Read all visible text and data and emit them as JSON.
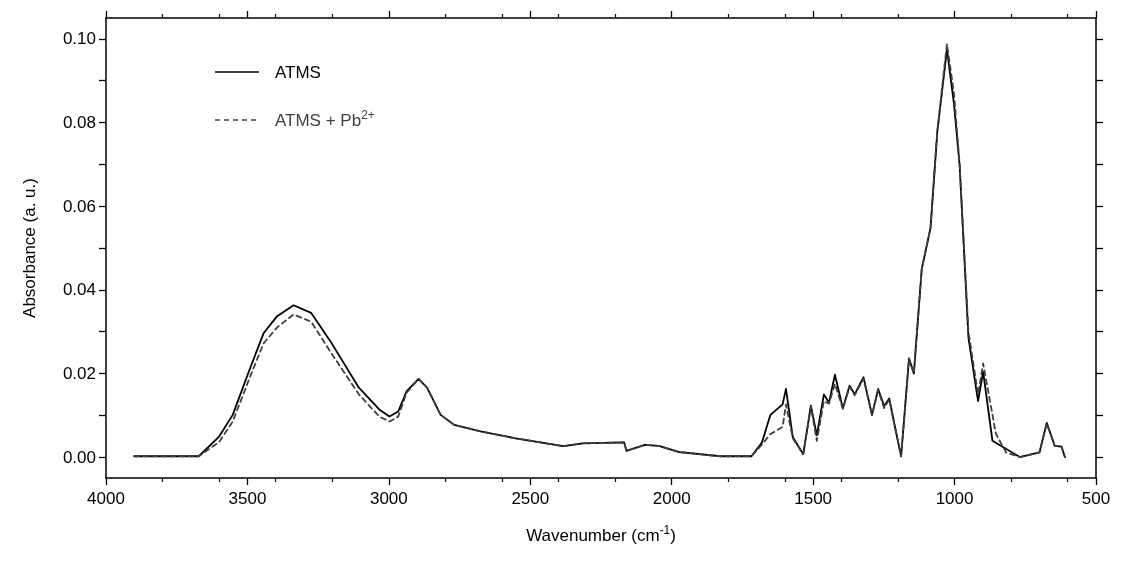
{
  "chart_data": {
    "type": "line",
    "xlabel": "Wavenumber (cm$^{-1}$)",
    "ylabel": "Absorbance (a. u.)",
    "xlim": [
      4000,
      500
    ],
    "xticks": [
      4000,
      3500,
      3000,
      2500,
      2000,
      1500,
      1000,
      500
    ],
    "ylim": [
      -0.005,
      0.105
    ],
    "yticks": [
      {
        "value": 0,
        "label": "0.00"
      },
      {
        "value": 0.01,
        "label": null
      },
      0.02,
      {
        "value": 0.03,
        "label": null
      },
      0.04,
      {
        "value": 0.05,
        "label": null
      },
      0.06,
      {
        "value": 0.07,
        "label": null
      },
      0.08,
      {
        "value": 0.09,
        "label": null
      },
      {
        "value": 0.1,
        "label": "0.10"
      }
    ],
    "grid": false,
    "legend": "top left",
    "marker": "none",
    "series": [
      {
        "name": "ATMS",
        "color": "#000000",
        "line_style": "solid",
        "x": [
          3900,
          3672,
          3600,
          3552,
          3492,
          3443,
          3395,
          3337,
          3275,
          3202,
          3106,
          3034,
          2998,
          2967,
          2937,
          2895,
          2865,
          2817,
          2769,
          2672,
          2552,
          2383,
          2314,
          2168,
          2160,
          2095,
          2046,
          1973,
          1827,
          1718,
          1681,
          1651,
          1608,
          1596,
          1572,
          1535,
          1508,
          1487,
          1462,
          1444,
          1423,
          1395,
          1371,
          1353,
          1322,
          1292,
          1270,
          1249,
          1231,
          1207,
          1189,
          1161,
          1144,
          1116,
          1085,
          1061,
          1027,
          1002,
          982,
          951,
          917,
          899,
          866,
          769,
          700,
          674,
          646,
          622,
          610
        ],
        "values": [
          0.0002,
          0.0002,
          0.0049,
          0.0101,
          0.021,
          0.0296,
          0.0337,
          0.0363,
          0.0345,
          0.0272,
          0.0166,
          0.0114,
          0.0097,
          0.0109,
          0.0158,
          0.0187,
          0.0166,
          0.0101,
          0.0077,
          0.0061,
          0.0045,
          0.0026,
          0.0033,
          0.0035,
          0.0015,
          0.0029,
          0.0027,
          0.0012,
          0.0002,
          0.0002,
          0.0035,
          0.0101,
          0.0126,
          0.0163,
          0.0048,
          0.0007,
          0.0123,
          0.0052,
          0.015,
          0.013,
          0.0197,
          0.0117,
          0.0171,
          0.015,
          0.0191,
          0.0101,
          0.0163,
          0.0122,
          0.014,
          0.006,
          0.0002,
          0.0236,
          0.02,
          0.045,
          0.0548,
          0.0778,
          0.0975,
          0.0844,
          0.0696,
          0.0286,
          0.0134,
          0.0204,
          0.0039,
          0.0,
          0.0011,
          0.0082,
          0.0027,
          0.0025,
          0.0
        ]
      },
      {
        "name": "ATMS + Pb$^{2+}$",
        "color": "#404040",
        "line_style": "dashed",
        "x": [
          3900,
          3672,
          3600,
          3552,
          3492,
          3443,
          3395,
          3337,
          3275,
          3202,
          3106,
          3034,
          2998,
          2967,
          2937,
          2895,
          2865,
          2817,
          2769,
          2672,
          2552,
          2383,
          2314,
          2168,
          2160,
          2095,
          2046,
          1973,
          1827,
          1718,
          1681,
          1651,
          1608,
          1596,
          1572,
          1535,
          1508,
          1487,
          1462,
          1444,
          1423,
          1395,
          1371,
          1353,
          1322,
          1292,
          1270,
          1249,
          1231,
          1207,
          1189,
          1161,
          1144,
          1116,
          1085,
          1061,
          1027,
          1002,
          982,
          951,
          917,
          899,
          854,
          818,
          769,
          700,
          674,
          646,
          622,
          610
        ],
        "values": [
          0.0002,
          0.0002,
          0.0036,
          0.0085,
          0.019,
          0.0272,
          0.031,
          0.0341,
          0.0324,
          0.0247,
          0.015,
          0.0097,
          0.0085,
          0.0097,
          0.0154,
          0.0187,
          0.0166,
          0.0101,
          0.0077,
          0.0061,
          0.0045,
          0.0026,
          0.0033,
          0.0035,
          0.0015,
          0.0029,
          0.0027,
          0.0012,
          0.0002,
          0.0002,
          0.003,
          0.0055,
          0.0072,
          0.0126,
          0.0045,
          0.0007,
          0.012,
          0.0039,
          0.0134,
          0.0128,
          0.0175,
          0.0115,
          0.0168,
          0.0148,
          0.0188,
          0.01,
          0.016,
          0.0117,
          0.0138,
          0.006,
          0.0002,
          0.0236,
          0.02,
          0.045,
          0.0548,
          0.078,
          0.0988,
          0.0869,
          0.07,
          0.03,
          0.015,
          0.0224,
          0.0056,
          0.0011,
          0.0,
          0.0011,
          0.008,
          0.0027,
          0.0025,
          0.0
        ]
      }
    ]
  }
}
